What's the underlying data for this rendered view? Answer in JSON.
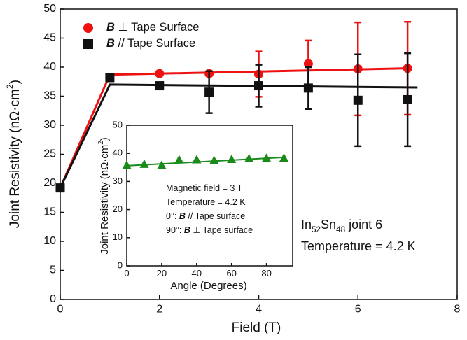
{
  "chart_data": [
    {
      "type": "scatter",
      "x_label": [
        {
          "text": "Field (T)"
        }
      ],
      "y_label": [
        {
          "text": "Joint Resistivity (nΩ·cm"
        },
        {
          "text": "2",
          "style": "sup"
        },
        {
          "text": ")"
        }
      ],
      "xlim": [
        0,
        8
      ],
      "xticks": [
        0,
        2,
        4,
        6,
        8
      ],
      "ylim": [
        0,
        50
      ],
      "yticks": [
        0,
        5,
        10,
        15,
        20,
        25,
        30,
        35,
        40,
        45,
        50
      ],
      "legend": "upper left",
      "series": [
        {
          "name": [
            {
              "text": "B",
              "style": "bold-italic"
            },
            {
              "text": " ⊥ Tape Surface"
            }
          ],
          "color": "#ee1111",
          "marker": "circle",
          "x": [
            0,
            1,
            2,
            3,
            4,
            5,
            6,
            7
          ],
          "values": [
            19.2,
            38.2,
            38.9,
            38.9,
            38.8,
            40.6,
            39.7,
            39.8
          ],
          "errors": [
            null,
            null,
            null,
            null,
            3.9,
            4.0,
            8.0,
            8.0
          ],
          "fit_x": [
            0,
            1,
            7
          ],
          "fit_values": [
            19.2,
            38.7,
            39.8
          ]
        },
        {
          "name": [
            {
              "text": "B",
              "style": "bold-italic"
            },
            {
              "text": " // Tape Surface"
            }
          ],
          "color": "#111111",
          "marker": "square",
          "x": [
            0,
            1,
            2,
            3,
            4,
            5,
            6,
            7
          ],
          "values": [
            19.2,
            38.2,
            36.8,
            35.7,
            36.8,
            36.4,
            34.3,
            34.4
          ],
          "errors": [
            null,
            null,
            null,
            3.6,
            3.6,
            3.6,
            7.9,
            8.0
          ],
          "fit_x": [
            0,
            1,
            7.2
          ],
          "fit_values": [
            19.2,
            37.0,
            36.5
          ]
        }
      ],
      "annotations": [
        [
          {
            "text": "In"
          },
          {
            "text": "52",
            "style": "sub"
          },
          {
            "text": "Sn"
          },
          {
            "text": "48",
            "style": "sub"
          },
          {
            "text": " joint 6"
          }
        ],
        [
          {
            "text": "Temperature = 4.2 K"
          }
        ]
      ]
    },
    {
      "type": "scatter",
      "x_label": [
        {
          "text": "Angle (Degrees)"
        }
      ],
      "y_label": [
        {
          "text": "Joint Resistivity (nΩ·cm"
        },
        {
          "text": "2",
          "style": "sup"
        },
        {
          "text": ")"
        }
      ],
      "xlim": [
        0,
        95
      ],
      "xticks": [
        0,
        20,
        40,
        60,
        80
      ],
      "ylim": [
        0,
        50
      ],
      "yticks": [
        0,
        10,
        20,
        30,
        40,
        50
      ],
      "series": [
        {
          "color": "#1a8a1a",
          "marker": "triangle",
          "x": [
            0,
            10,
            20,
            30,
            40,
            50,
            60,
            70,
            80,
            90
          ],
          "values": [
            35.8,
            36.2,
            35.8,
            37.8,
            37.8,
            37.5,
            37.9,
            38.2,
            38.3,
            38.4
          ],
          "fit_x": [
            0,
            90
          ],
          "fit_values": [
            35.6,
            38.6
          ]
        }
      ],
      "annotations": [
        [
          {
            "text": "Magnetic field = 3 T"
          }
        ],
        [
          {
            "text": "Temperature = 4.2 K"
          }
        ],
        [
          {
            "text": "0°: "
          },
          {
            "text": "B",
            "style": "bold-italic"
          },
          {
            "text": " // Tape surface"
          }
        ],
        [
          {
            "text": "90°: "
          },
          {
            "text": "B",
            "style": "bold-italic"
          },
          {
            "text": " ⊥ Tape surface"
          }
        ]
      ]
    }
  ]
}
